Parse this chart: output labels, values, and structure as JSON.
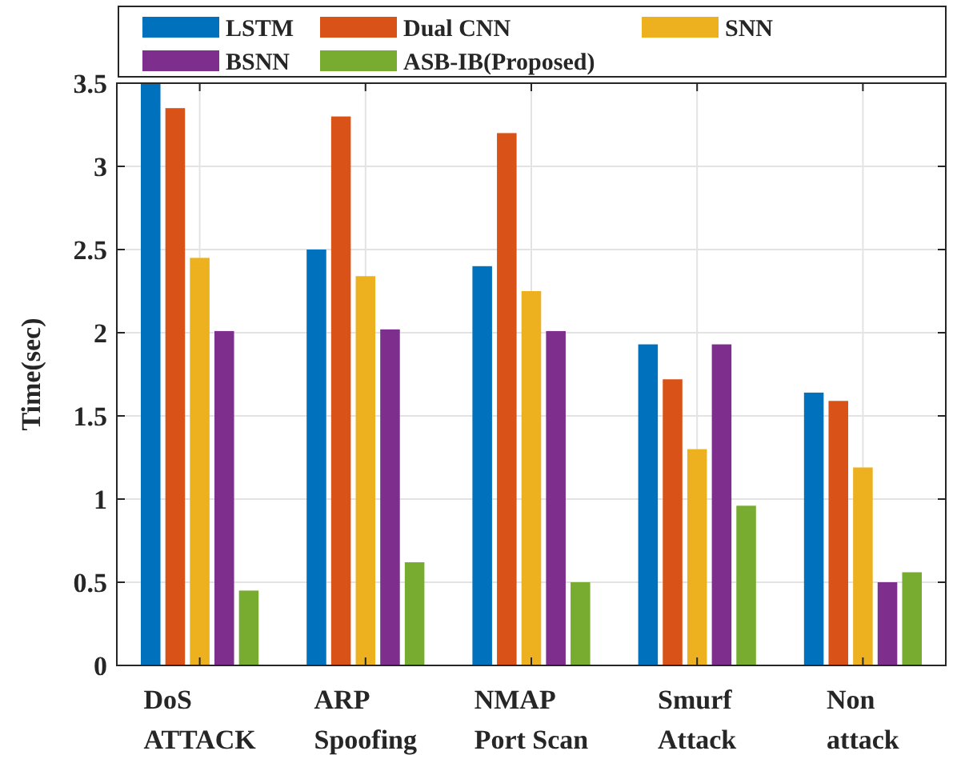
{
  "chart_data": {
    "type": "bar",
    "ylabel": "Time(sec)",
    "categories": [
      "DoS\nATTACK",
      "ARP\nSpoofing",
      "NMAP\nPort Scan",
      "Smurf\nAttack",
      "Non\nattack"
    ],
    "series": [
      {
        "name": "LSTM",
        "color": "#0072bd",
        "values": [
          3.5,
          2.5,
          2.4,
          1.93,
          1.64
        ]
      },
      {
        "name": "Dual CNN",
        "color": "#d95319",
        "values": [
          3.35,
          3.3,
          3.2,
          1.72,
          1.59
        ]
      },
      {
        "name": "SNN",
        "color": "#edb120",
        "values": [
          2.45,
          2.34,
          2.25,
          1.3,
          1.19
        ]
      },
      {
        "name": "BSNN",
        "color": "#7e2f8e",
        "values": [
          2.01,
          2.02,
          2.01,
          1.93,
          0.5
        ]
      },
      {
        "name": "ASB-IB(Proposed)",
        "color": "#77ac30",
        "values": [
          0.45,
          0.62,
          0.5,
          0.96,
          0.56
        ]
      }
    ],
    "ylim": [
      0,
      3.5
    ],
    "yticks": [
      0,
      {
        "value": 0.5,
        "label": "0.5"
      },
      1,
      {
        "value": 1.5,
        "label": "1.5"
      },
      2,
      {
        "value": 2.5,
        "label": "2.5"
      },
      3,
      {
        "value": 3.5,
        "label": "3.5"
      }
    ],
    "grid": true,
    "legend": "top"
  }
}
